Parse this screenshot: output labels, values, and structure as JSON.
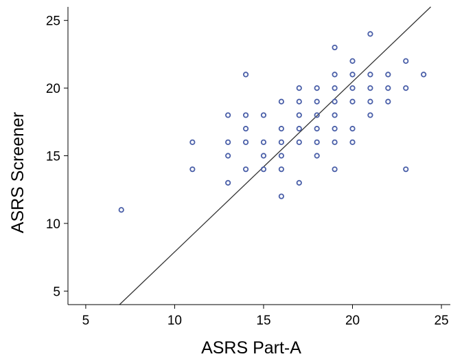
{
  "chart_data": {
    "type": "scatter",
    "title": "",
    "xlabel": "ASRS Part-A",
    "ylabel": "ASRS Screener",
    "xlim": [
      4,
      25.5
    ],
    "ylim": [
      4,
      26
    ],
    "xticks": [
      5,
      10,
      15,
      20,
      25
    ],
    "yticks": [
      5,
      10,
      15,
      20,
      25
    ],
    "grid": false,
    "legend": "none",
    "colors": {
      "marker": "#4a5fa8",
      "line": "#333333",
      "axis": "#000000"
    },
    "series": [
      {
        "values": [
          [
            7,
            11
          ],
          [
            11,
            16
          ],
          [
            11,
            14
          ],
          [
            13,
            18
          ],
          [
            13,
            16
          ],
          [
            13,
            15
          ],
          [
            13,
            13
          ],
          [
            14,
            21
          ],
          [
            14,
            18
          ],
          [
            14,
            17
          ],
          [
            14,
            16
          ],
          [
            14,
            14
          ],
          [
            15,
            18
          ],
          [
            15,
            16
          ],
          [
            15,
            15
          ],
          [
            15,
            14
          ],
          [
            16,
            19
          ],
          [
            16,
            17
          ],
          [
            16,
            16
          ],
          [
            16,
            15
          ],
          [
            16,
            14
          ],
          [
            16,
            12
          ],
          [
            17,
            20
          ],
          [
            17,
            19
          ],
          [
            17,
            18
          ],
          [
            17,
            17
          ],
          [
            17,
            16
          ],
          [
            17,
            13
          ],
          [
            18,
            20
          ],
          [
            18,
            19
          ],
          [
            18,
            18
          ],
          [
            18,
            17
          ],
          [
            18,
            16
          ],
          [
            18,
            15
          ],
          [
            19,
            23
          ],
          [
            19,
            21
          ],
          [
            19,
            20
          ],
          [
            19,
            19
          ],
          [
            19,
            18
          ],
          [
            19,
            17
          ],
          [
            19,
            16
          ],
          [
            19,
            14
          ],
          [
            20,
            22
          ],
          [
            20,
            21
          ],
          [
            20,
            20
          ],
          [
            20,
            19
          ],
          [
            20,
            17
          ],
          [
            20,
            16
          ],
          [
            21,
            24
          ],
          [
            21,
            21
          ],
          [
            21,
            20
          ],
          [
            21,
            19
          ],
          [
            21,
            18
          ],
          [
            22,
            21
          ],
          [
            22,
            20
          ],
          [
            22,
            19
          ],
          [
            23,
            22
          ],
          [
            23,
            20
          ],
          [
            23,
            14
          ],
          [
            24,
            21
          ]
        ]
      }
    ],
    "fit_line": {
      "x": [
        6.9,
        24.4
      ],
      "y": [
        4,
        26
      ]
    }
  }
}
